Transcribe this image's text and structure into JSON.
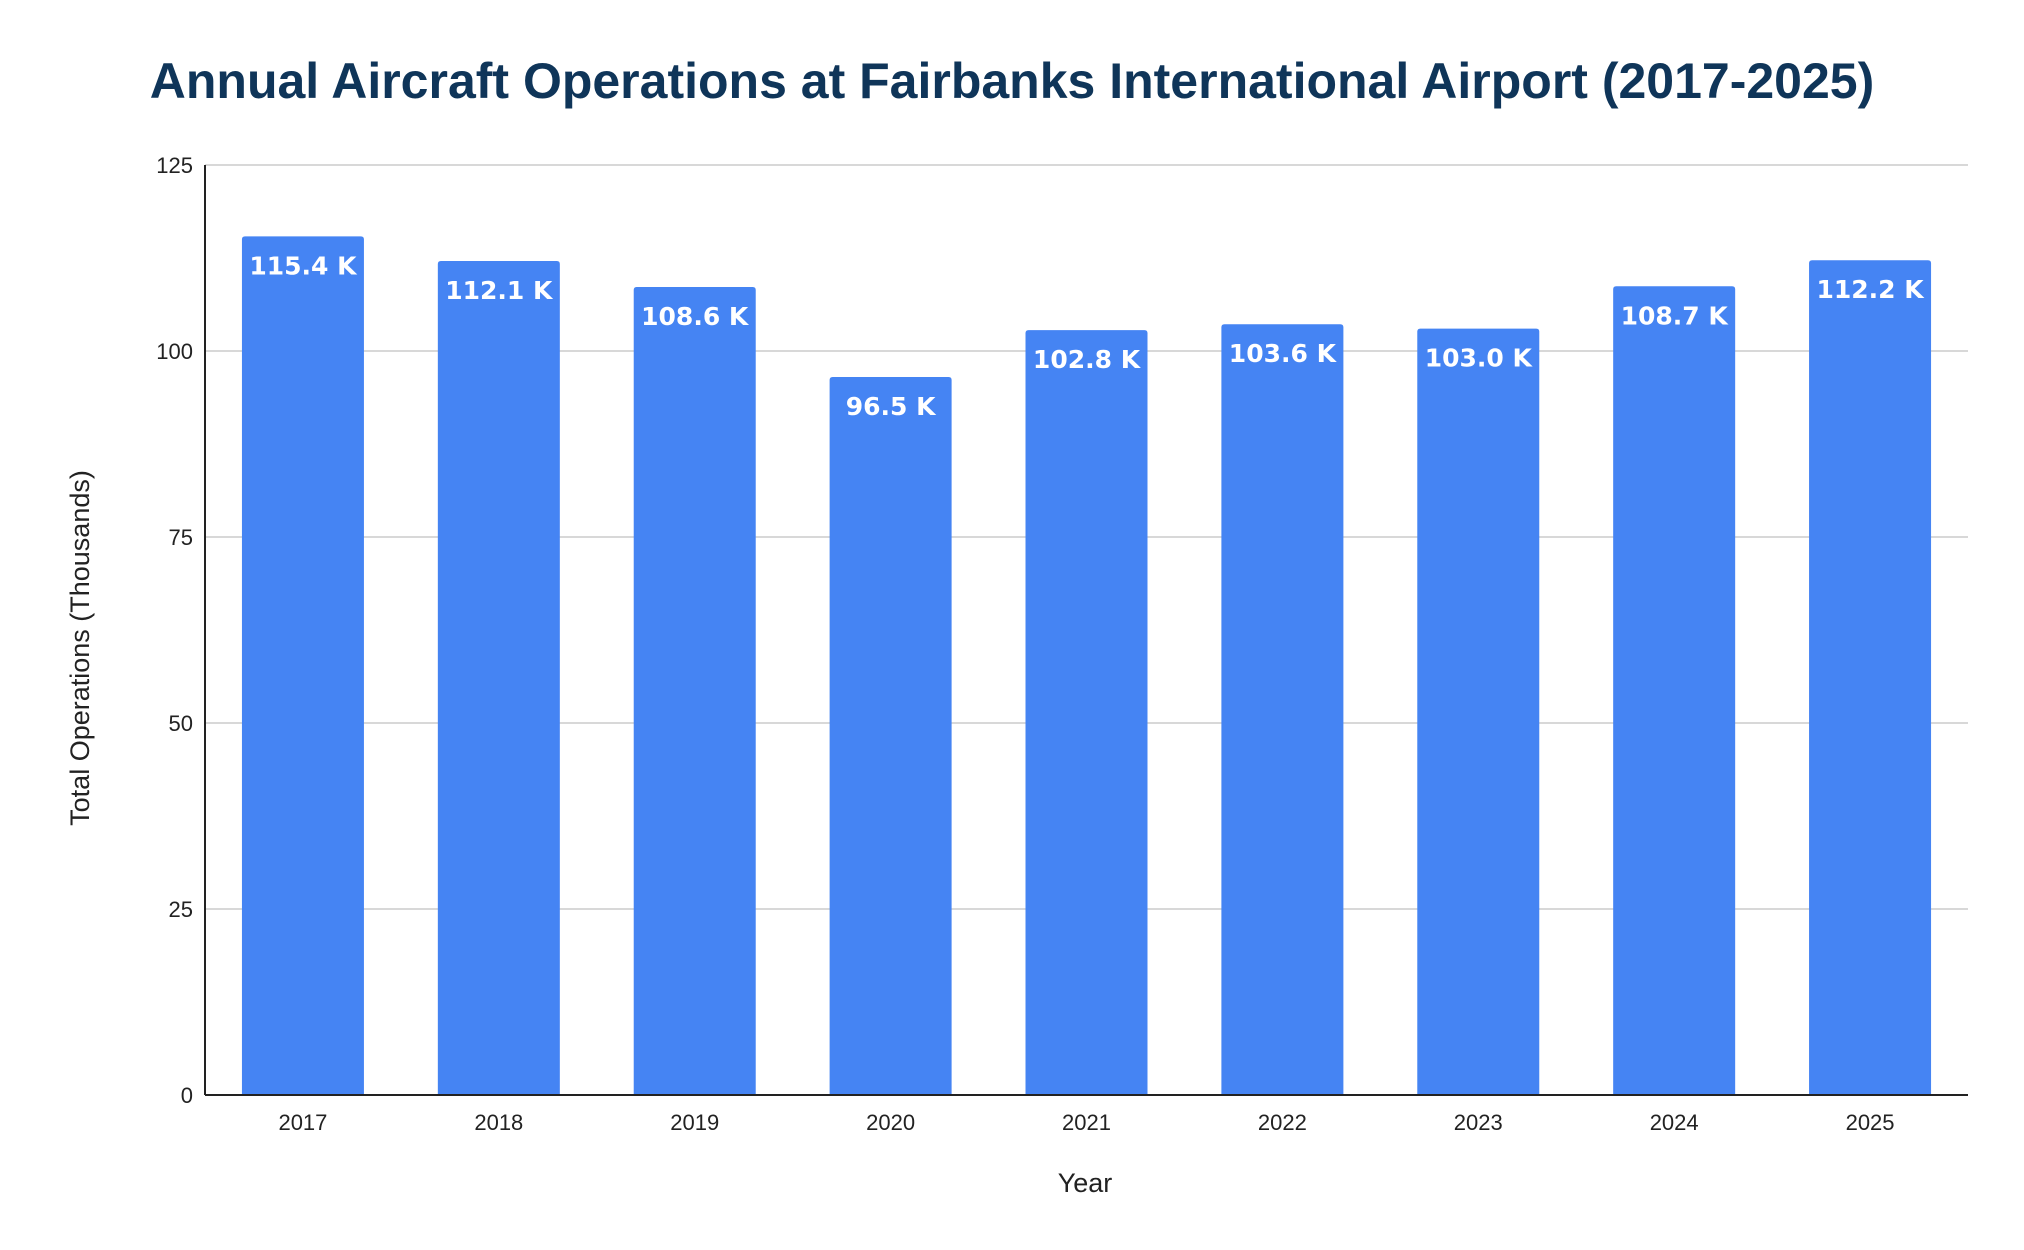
{
  "chart_data": {
    "type": "bar",
    "title": "Annual Aircraft Operations at Fairbanks International Airport (2017-2025)",
    "xlabel": "Year",
    "ylabel": "Total Operations (Thousands)",
    "categories": [
      "2017",
      "2018",
      "2019",
      "2020",
      "2021",
      "2022",
      "2023",
      "2024",
      "2025"
    ],
    "values": [
      115.4,
      112.1,
      108.6,
      96.5,
      102.8,
      103.6,
      103.0,
      108.7,
      112.2
    ],
    "data_labels": [
      "115.4 K",
      "112.1 K",
      "108.6 K",
      "96.5 K",
      "102.8 K",
      "103.6 K",
      "103.0 K",
      "108.7 K",
      "112.2 K"
    ],
    "ylim": [
      0,
      125
    ],
    "yticks": [
      0,
      25,
      50,
      75,
      100,
      125
    ],
    "grid": true,
    "legend": "none",
    "colors": {
      "bar": "#4584f3",
      "title": "#0f3559",
      "grid": "#cccccc",
      "axis": "#222222"
    }
  }
}
